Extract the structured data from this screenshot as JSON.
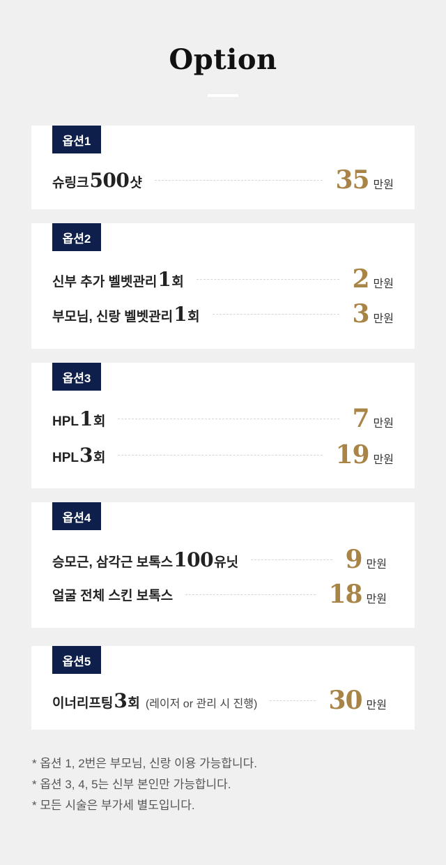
{
  "title": "Option",
  "options": [
    {
      "badge": "옵션1",
      "items": [
        {
          "pre": "슈링크 ",
          "num": "500",
          "post": "샷",
          "note": "",
          "price": "35",
          "unit": "만원"
        }
      ]
    },
    {
      "badge": "옵션2",
      "items": [
        {
          "pre": "신부 추가 벨벳관리 ",
          "num": "1",
          "post": "회",
          "note": "",
          "price": "2",
          "unit": "만원"
        },
        {
          "pre": "부모님, 신랑 벨벳관리 ",
          "num": "1",
          "post": "회",
          "note": "",
          "price": "3",
          "unit": "만원"
        }
      ]
    },
    {
      "badge": "옵션3",
      "items": [
        {
          "pre": "HPL ",
          "num": "1",
          "post": "회",
          "note": "",
          "price": "7",
          "unit": "만원"
        },
        {
          "pre": "HPL ",
          "num": "3",
          "post": "회",
          "note": "",
          "price": "19",
          "unit": "만원"
        }
      ]
    },
    {
      "badge": "옵션4",
      "items": [
        {
          "pre": "승모근, 삼각근 보톡스 ",
          "num": "100",
          "post": "유닛",
          "note": "",
          "price": "9",
          "unit": "만원"
        },
        {
          "pre": "얼굴 전체 스킨 보톡스",
          "num": "",
          "post": "",
          "note": "",
          "price": "18",
          "unit": "만원"
        }
      ]
    },
    {
      "badge": "옵션5",
      "items": [
        {
          "pre": "이너리프팅 ",
          "num": "3",
          "post": "회",
          "note": "(레이저 or 관리 시 진행)",
          "price": "30",
          "unit": "만원"
        }
      ]
    }
  ],
  "notes": [
    "* 옵션 1, 2번은 부모님, 신랑 이용 가능합니다.",
    "* 옵션 3, 4, 5는 신부 본인만 가능합니다.",
    "* 모든 시술은 부가세 별도입니다."
  ]
}
